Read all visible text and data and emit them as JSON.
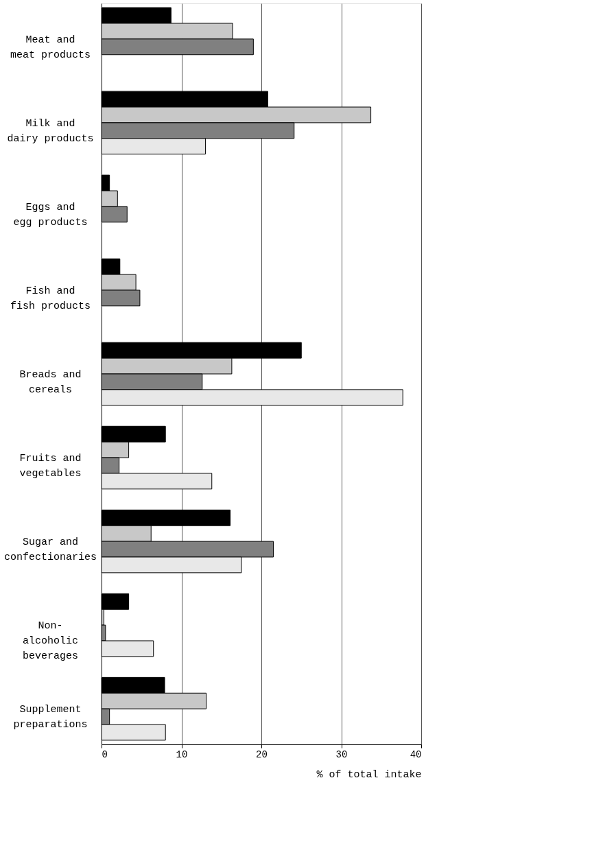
{
  "chart_data": {
    "type": "bar",
    "orientation": "horizontal",
    "xlabel": "% of total intake",
    "categories": [
      "Meat and\nmeat products",
      "Milk and\ndairy products",
      "Eggs and\negg products",
      "Fish and\nfish products",
      "Breads and\ncereals",
      "Fruits and\nvegetables",
      "Sugar and\nconfectionaries",
      "Non-\nalcoholic\nbeverages",
      "Supplement\npreparations"
    ],
    "series": [
      {
        "color": "#000000",
        "values": [
          8.7,
          20.8,
          1.0,
          2.3,
          25.0,
          8.0,
          16.1,
          3.4,
          7.9
        ]
      },
      {
        "color": "#c8c8c8",
        "values": [
          16.4,
          33.7,
          2.0,
          4.3,
          16.3,
          3.4,
          6.2,
          0.3,
          13.1
        ]
      },
      {
        "color": "#808080",
        "values": [
          19.0,
          24.1,
          3.2,
          4.8,
          12.6,
          2.2,
          21.5,
          0.5,
          1.0
        ]
      },
      {
        "color": "#e8e8e8",
        "values": [
          null,
          13.0,
          null,
          null,
          37.7,
          13.8,
          17.5,
          6.5,
          8.0
        ]
      }
    ],
    "xlim": [
      0,
      40
    ],
    "xticks": [
      0,
      10,
      20,
      30,
      40
    ],
    "grid": "x"
  }
}
